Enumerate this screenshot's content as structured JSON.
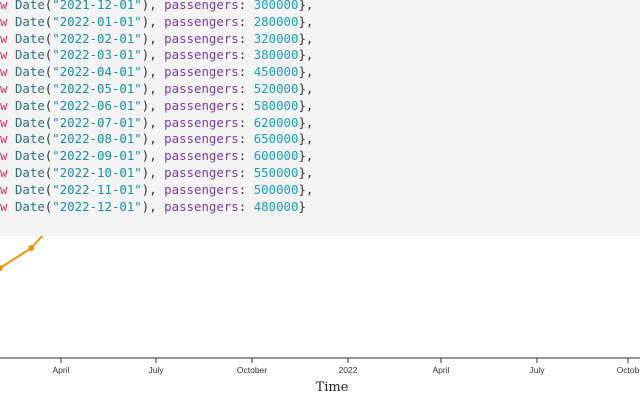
{
  "code": {
    "lines": [
      {
        "kw": "w",
        "fn": "Date",
        "date": "\"2021-12-01\"",
        "prop": "passengers",
        "num": "300000"
      },
      {
        "kw": "w",
        "fn": "Date",
        "date": "\"2022-01-01\"",
        "prop": "passengers",
        "num": "280000"
      },
      {
        "kw": "w",
        "fn": "Date",
        "date": "\"2022-02-01\"",
        "prop": "passengers",
        "num": "320000"
      },
      {
        "kw": "w",
        "fn": "Date",
        "date": "\"2022-03-01\"",
        "prop": "passengers",
        "num": "380000"
      },
      {
        "kw": "w",
        "fn": "Date",
        "date": "\"2022-04-01\"",
        "prop": "passengers",
        "num": "450000"
      },
      {
        "kw": "w",
        "fn": "Date",
        "date": "\"2022-05-01\"",
        "prop": "passengers",
        "num": "520000"
      },
      {
        "kw": "w",
        "fn": "Date",
        "date": "\"2022-06-01\"",
        "prop": "passengers",
        "num": "580000"
      },
      {
        "kw": "w",
        "fn": "Date",
        "date": "\"2022-07-01\"",
        "prop": "passengers",
        "num": "620000"
      },
      {
        "kw": "w",
        "fn": "Date",
        "date": "\"2022-08-01\"",
        "prop": "passengers",
        "num": "650000"
      },
      {
        "kw": "w",
        "fn": "Date",
        "date": "\"2022-09-01\"",
        "prop": "passengers",
        "num": "600000"
      },
      {
        "kw": "w",
        "fn": "Date",
        "date": "\"2022-10-01\"",
        "prop": "passengers",
        "num": "550000"
      },
      {
        "kw": "w",
        "fn": "Date",
        "date": "\"2022-11-01\"",
        "prop": "passengers",
        "num": "500000"
      },
      {
        "kw": "w",
        "fn": "Date",
        "date": "\"2022-12-01\"",
        "prop": "passengers",
        "num": "480000"
      }
    ]
  },
  "chart_data": {
    "type": "line",
    "xlabel": "Time",
    "ticks": [
      "April",
      "July",
      "October",
      "2022",
      "April",
      "July",
      "Octob"
    ],
    "visible_points": [
      {
        "x": "2021-01-01"
      },
      {
        "x": "2021-03-01"
      },
      {
        "x": "2021-03-25"
      }
    ],
    "line_color": "#e8950f"
  }
}
